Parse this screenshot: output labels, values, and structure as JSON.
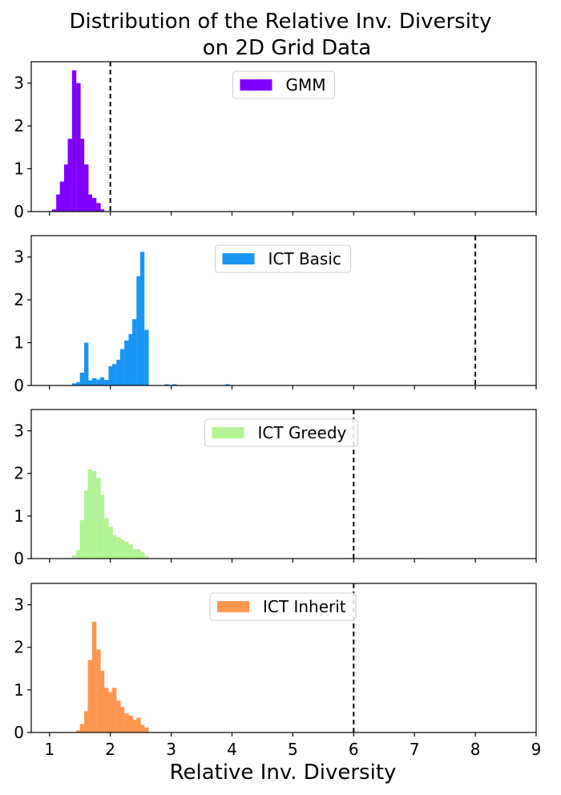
{
  "chart_data": {
    "type": "bar",
    "title_lines": [
      "Distribution of the Relative Inv. Diversity",
      "on 2D Grid Data"
    ],
    "xlabel": "Relative Inv. Diversity",
    "xlim": [
      0.7,
      9.0
    ],
    "ylim": [
      0,
      3.5
    ],
    "x_ticks": [
      "1",
      "2",
      "3",
      "4",
      "5",
      "6",
      "7",
      "8",
      "9"
    ],
    "y_ticks": [
      "0",
      "1",
      "2",
      "3"
    ],
    "bin_width": 0.066,
    "grid": false,
    "legend_position": "top-center",
    "panels": [
      {
        "name": "GMM",
        "color": "#8000ff",
        "reference_line_x": 2.0,
        "bins": [
          {
            "x": 1.04,
            "y": 0.05
          },
          {
            "x": 1.11,
            "y": 0.4
          },
          {
            "x": 1.17,
            "y": 0.7
          },
          {
            "x": 1.24,
            "y": 1.1
          },
          {
            "x": 1.3,
            "y": 1.7
          },
          {
            "x": 1.37,
            "y": 3.3
          },
          {
            "x": 1.44,
            "y": 3.0
          },
          {
            "x": 1.5,
            "y": 1.7
          },
          {
            "x": 1.57,
            "y": 1.1
          },
          {
            "x": 1.63,
            "y": 0.4
          },
          {
            "x": 1.7,
            "y": 0.32
          },
          {
            "x": 1.77,
            "y": 0.2
          },
          {
            "x": 1.83,
            "y": 0.05
          }
        ]
      },
      {
        "name": "ICT Basic",
        "color": "#1996f3",
        "reference_line_x": 8.0,
        "bins": [
          {
            "x": 1.37,
            "y": 0.05
          },
          {
            "x": 1.44,
            "y": 0.08
          },
          {
            "x": 1.5,
            "y": 0.3
          },
          {
            "x": 1.57,
            "y": 1.0
          },
          {
            "x": 1.63,
            "y": 0.12
          },
          {
            "x": 1.7,
            "y": 0.17
          },
          {
            "x": 1.77,
            "y": 0.14
          },
          {
            "x": 1.83,
            "y": 0.19
          },
          {
            "x": 1.9,
            "y": 0.13
          },
          {
            "x": 1.97,
            "y": 0.45
          },
          {
            "x": 2.03,
            "y": 0.5
          },
          {
            "x": 2.1,
            "y": 0.6
          },
          {
            "x": 2.16,
            "y": 0.85
          },
          {
            "x": 2.23,
            "y": 1.05
          },
          {
            "x": 2.3,
            "y": 1.2
          },
          {
            "x": 2.36,
            "y": 1.55
          },
          {
            "x": 2.43,
            "y": 2.55
          },
          {
            "x": 2.49,
            "y": 3.12
          },
          {
            "x": 2.56,
            "y": 1.3
          },
          {
            "x": 2.89,
            "y": 0.03
          },
          {
            "x": 3.02,
            "y": 0.03
          },
          {
            "x": 3.89,
            "y": 0.03
          }
        ]
      },
      {
        "name": "ICT Greedy",
        "color": "#b2f396",
        "reference_line_x": 6.0,
        "bins": [
          {
            "x": 1.37,
            "y": 0.08
          },
          {
            "x": 1.44,
            "y": 0.2
          },
          {
            "x": 1.5,
            "y": 0.9
          },
          {
            "x": 1.57,
            "y": 1.6
          },
          {
            "x": 1.63,
            "y": 2.1
          },
          {
            "x": 1.7,
            "y": 2.05
          },
          {
            "x": 1.77,
            "y": 1.9
          },
          {
            "x": 1.83,
            "y": 1.5
          },
          {
            "x": 1.9,
            "y": 0.95
          },
          {
            "x": 1.97,
            "y": 0.75
          },
          {
            "x": 2.03,
            "y": 0.55
          },
          {
            "x": 2.1,
            "y": 0.5
          },
          {
            "x": 2.16,
            "y": 0.45
          },
          {
            "x": 2.23,
            "y": 0.4
          },
          {
            "x": 2.3,
            "y": 0.33
          },
          {
            "x": 2.36,
            "y": 0.22
          },
          {
            "x": 2.43,
            "y": 0.22
          },
          {
            "x": 2.49,
            "y": 0.15
          },
          {
            "x": 2.56,
            "y": 0.05
          }
        ]
      },
      {
        "name": "ICT Inherit",
        "color": "#ff9650",
        "reference_line_x": 6.0,
        "bins": [
          {
            "x": 1.44,
            "y": 0.05
          },
          {
            "x": 1.5,
            "y": 0.2
          },
          {
            "x": 1.57,
            "y": 0.5
          },
          {
            "x": 1.63,
            "y": 1.7
          },
          {
            "x": 1.7,
            "y": 2.6
          },
          {
            "x": 1.77,
            "y": 1.95
          },
          {
            "x": 1.83,
            "y": 1.45
          },
          {
            "x": 1.9,
            "y": 1.05
          },
          {
            "x": 1.97,
            "y": 0.95
          },
          {
            "x": 2.03,
            "y": 1.05
          },
          {
            "x": 2.1,
            "y": 0.75
          },
          {
            "x": 2.16,
            "y": 0.6
          },
          {
            "x": 2.23,
            "y": 0.45
          },
          {
            "x": 2.3,
            "y": 0.4
          },
          {
            "x": 2.36,
            "y": 0.3
          },
          {
            "x": 2.43,
            "y": 0.35
          },
          {
            "x": 2.49,
            "y": 0.18
          },
          {
            "x": 2.56,
            "y": 0.12
          }
        ]
      }
    ]
  }
}
